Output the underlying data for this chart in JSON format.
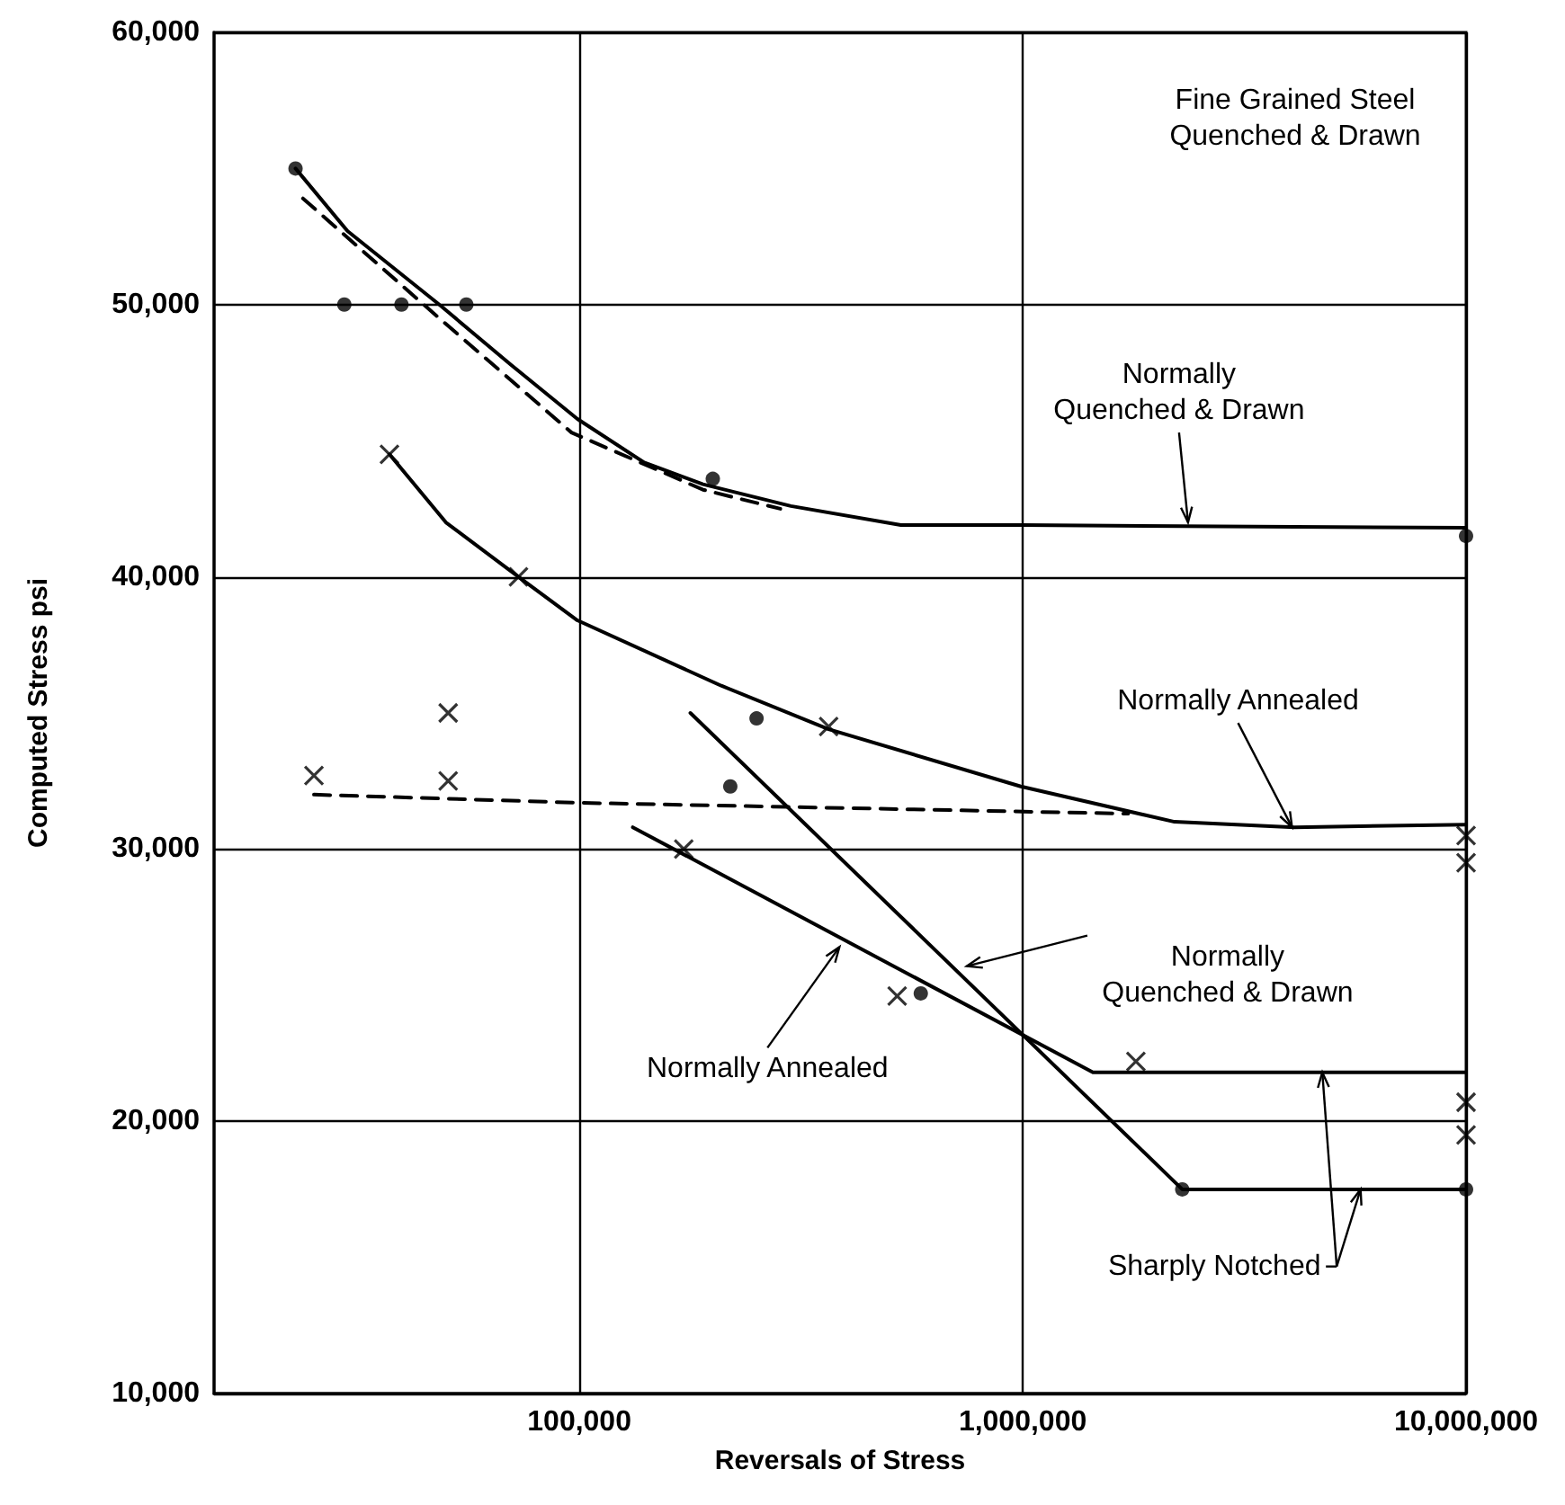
{
  "chart_data": {
    "type": "line",
    "xlabel": "Reversals of Stress",
    "ylabel": "Computed Stress psi",
    "log": "x",
    "grid": true,
    "xlim": [
      15000,
      10000000
    ],
    "xticks": [
      {
        "value": 100000,
        "label": "100,000"
      },
      {
        "value": 1000000,
        "label": "1,000,000"
      },
      {
        "value": 10000000,
        "label": "10,000,000"
      }
    ],
    "ylim": [
      10000,
      60000
    ],
    "yticks": [
      {
        "value": 10000,
        "label": "10,000"
      },
      {
        "value": 20000,
        "label": "20,000"
      },
      {
        "value": 30000,
        "label": "30,000"
      },
      {
        "value": 40000,
        "label": "40,000"
      },
      {
        "value": 50000,
        "label": "50,000"
      },
      {
        "value": 60000,
        "label": "60,000"
      }
    ],
    "series": [
      {
        "type": "line",
        "color": "#000000",
        "line_style": "solid",
        "marker": "none",
        "x": [
          22900,
          30000,
          48300,
          70000,
          99000,
          140000,
          190000,
          300000,
          531000,
          1000000,
          10000000
        ],
        "values": [
          55000,
          52700,
          50000,
          47800,
          45800,
          44200,
          43400,
          42600,
          41900,
          41900,
          41800
        ]
      },
      {
        "type": "line",
        "color": "#000000",
        "line_style": "dashed",
        "marker": "none",
        "x": [
          23800,
          48300,
          96000,
          190000,
          284000
        ],
        "values": [
          53900,
          49500,
          45300,
          43200,
          42500
        ]
      },
      {
        "type": "scatter",
        "color": "#000000",
        "marker": "circle",
        "x": [
          22900,
          29500,
          39700,
          55600,
          200000,
          10000000
        ],
        "values": [
          55000,
          50000,
          50000,
          50000,
          43600,
          41500
        ]
      },
      {
        "type": "line",
        "color": "#000000",
        "line_style": "solid",
        "marker": "none",
        "x": [
          37300,
          50000,
          72900,
          99000,
          209000,
          365000,
          990000,
          2200000,
          4100000,
          10000000
        ],
        "values": [
          44500,
          42000,
          40000,
          38400,
          36000,
          34400,
          32300,
          31000,
          30800,
          30900
        ]
      },
      {
        "type": "line",
        "color": "#000000",
        "line_style": "dashed",
        "marker": "none",
        "x": [
          25200,
          100000,
          1730000
        ],
        "values": [
          32000,
          31700,
          31300
        ]
      },
      {
        "type": "scatter",
        "color": "#000000",
        "marker": "cross",
        "x": [
          37300,
          72900,
          365000,
          25200,
          50600,
          50600,
          10000000,
          10000000
        ],
        "values": [
          44500,
          40000,
          34500,
          32700,
          35000,
          32500,
          30500,
          29500
        ]
      },
      {
        "type": "scatter",
        "color": "#000000",
        "marker": "circle",
        "x": [
          251000,
          219000
        ],
        "values": [
          34800,
          32300
        ]
      },
      {
        "type": "line",
        "color": "#000000",
        "line_style": "solid",
        "marker": "none",
        "x": [
          178000,
          2290000,
          10000000
        ],
        "values": [
          35000,
          17500,
          17500
        ]
      },
      {
        "type": "scatter",
        "color": "#000000",
        "marker": "circle",
        "x": [
          2290000,
          10000000,
          589000
        ],
        "values": [
          17500,
          17500,
          24700
        ]
      },
      {
        "type": "line",
        "color": "#000000",
        "line_style": "solid",
        "marker": "none",
        "x": [
          132000,
          1440000,
          10000000
        ],
        "values": [
          30800,
          21800,
          21800
        ]
      },
      {
        "type": "scatter",
        "color": "#000000",
        "marker": "cross",
        "x": [
          172000,
          521000,
          1800000,
          10000000,
          10000000
        ],
        "values": [
          30000,
          24600,
          22200,
          20700,
          19500
        ]
      }
    ],
    "annotations": [
      "Fine Grained Steel\nQuenched & Drawn",
      {
        "text": "Normally\nQuenched & Drawn",
        "x": 2360000,
        "y": 42000
      },
      {
        "text": "Normally Annealed",
        "x": 4050000,
        "y": 30800
      },
      {
        "text": "Normally\nQuenched & Drawn",
        "x": 748000,
        "y": 25700
      },
      {
        "text": "Normally Annealed",
        "x": 386000,
        "y": 26400
      },
      {
        "text": "Sharply Notched",
        "x": 4740000,
        "y": 21800
      }
    ]
  }
}
